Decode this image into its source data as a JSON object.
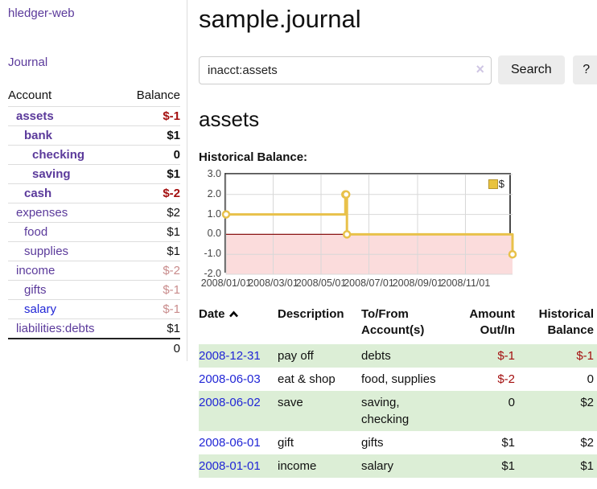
{
  "app_title": "hledger-web",
  "nav": {
    "journal": "Journal"
  },
  "sidebar": {
    "headers": {
      "account": "Account",
      "balance": "Balance"
    },
    "accounts": [
      {
        "name": "assets",
        "balance": "$-1",
        "depth": 0,
        "bold": true,
        "balance_tone": "neg-strong"
      },
      {
        "name": "bank",
        "balance": "$1",
        "depth": 1,
        "bold": true,
        "balance_tone": "pos"
      },
      {
        "name": "checking",
        "balance": "0",
        "depth": 2,
        "bold": true,
        "balance_tone": "pos"
      },
      {
        "name": "saving",
        "balance": "$1",
        "depth": 2,
        "bold": true,
        "balance_tone": "pos"
      },
      {
        "name": "cash",
        "balance": "$-2",
        "depth": 1,
        "bold": true,
        "balance_tone": "neg-strong"
      },
      {
        "name": "expenses",
        "balance": "$2",
        "depth": 0,
        "bold": false,
        "balance_tone": "pos"
      },
      {
        "name": "food",
        "balance": "$1",
        "depth": 1,
        "bold": false,
        "balance_tone": "pos"
      },
      {
        "name": "supplies",
        "balance": "$1",
        "depth": 1,
        "bold": false,
        "balance_tone": "pos"
      },
      {
        "name": "income",
        "balance": "$-2",
        "depth": 0,
        "bold": false,
        "balance_tone": "neg-soft"
      },
      {
        "name": "gifts",
        "balance": "$-1",
        "depth": 1,
        "bold": false,
        "balance_tone": "neg-soft"
      },
      {
        "name": "salary",
        "balance": "$-1",
        "depth": 1,
        "bold": false,
        "balance_tone": "neg-soft",
        "link_tone": "blue"
      },
      {
        "name": "liabilities:debts",
        "balance": "$1",
        "depth": 0,
        "bold": false,
        "balance_tone": "pos"
      }
    ],
    "total": "0"
  },
  "header": {
    "title": "sample.journal"
  },
  "search": {
    "value": "inacct:assets",
    "button": "Search",
    "help": "?"
  },
  "icons": {
    "clear_search": "×",
    "sort_asc": "chevron-up-icon",
    "legend_swatch": "yellow-square"
  },
  "account_page": {
    "heading": "assets",
    "chart_title": "Historical Balance:"
  },
  "chart_data": {
    "type": "line",
    "step": true,
    "title": "Historical Balance",
    "series": [
      {
        "name": "$",
        "color": "#e8c14a",
        "points": [
          [
            "2008-01-01",
            1
          ],
          [
            "2008-06-01",
            2
          ],
          [
            "2008-06-02",
            2
          ],
          [
            "2008-06-03",
            0
          ],
          [
            "2008-12-31",
            -1
          ]
        ]
      }
    ],
    "x_range": [
      "2008-01-01",
      "2008-12-31"
    ],
    "ylim": [
      -2,
      3
    ],
    "yticks": [
      "3.0",
      "2.0",
      "1.0",
      "0.0",
      "-1.0",
      "-2.0"
    ],
    "xticks": [
      "2008/01/01",
      "2008/03/01",
      "2008/05/01",
      "2008/07/01",
      "2008/09/01",
      "2008/11/01"
    ],
    "legend": {
      "label": "$",
      "position": "top-right"
    },
    "grid": true,
    "negative_fill": "#fbdcdc",
    "zero_line_color": "#8b1515",
    "grid_color": "#d8d8d8",
    "border_color": "#4a4a4a"
  },
  "register": {
    "headers": {
      "date": "Date",
      "description": "Description",
      "accounts": "To/From Account(s)",
      "amount": "Amount Out/In",
      "balance": "Historical Balance"
    },
    "sort": {
      "column": "date",
      "direction": "asc"
    },
    "rows": [
      {
        "date": "2008-12-31",
        "description": "pay off",
        "accounts_lines": [
          "debts"
        ],
        "amount": "$-1",
        "balance": "$-1",
        "amount_tone": "neg",
        "balance_tone": "neg",
        "striped": true
      },
      {
        "date": "2008-06-03",
        "description": "eat & shop",
        "accounts_lines": [
          "food, supplies"
        ],
        "amount": "$-2",
        "balance": "0",
        "amount_tone": "neg",
        "balance_tone": "pos",
        "striped": false
      },
      {
        "date": "2008-06-02",
        "description": "save",
        "accounts_lines": [
          "saving,",
          "checking"
        ],
        "amount": "0",
        "balance": "$2",
        "amount_tone": "pos",
        "balance_tone": "pos",
        "striped": true
      },
      {
        "date": "2008-06-01",
        "description": "gift",
        "accounts_lines": [
          "gifts"
        ],
        "amount": "$1",
        "balance": "$2",
        "amount_tone": "pos",
        "balance_tone": "pos",
        "striped": false
      },
      {
        "date": "2008-01-01",
        "description": "income",
        "accounts_lines": [
          "salary"
        ],
        "amount": "$1",
        "balance": "$1",
        "amount_tone": "pos",
        "balance_tone": "pos",
        "striped": true
      }
    ]
  },
  "colors": {
    "link_purple": "#5b3a9b",
    "link_blue": "#2126d6",
    "negative_strong": "#a40f0f",
    "negative_soft": "#c98c8c",
    "row_stripe_green": "#dceed6",
    "chart_line_yellow": "#e8c14a",
    "chart_negative_pink": "#fbdcdc"
  }
}
